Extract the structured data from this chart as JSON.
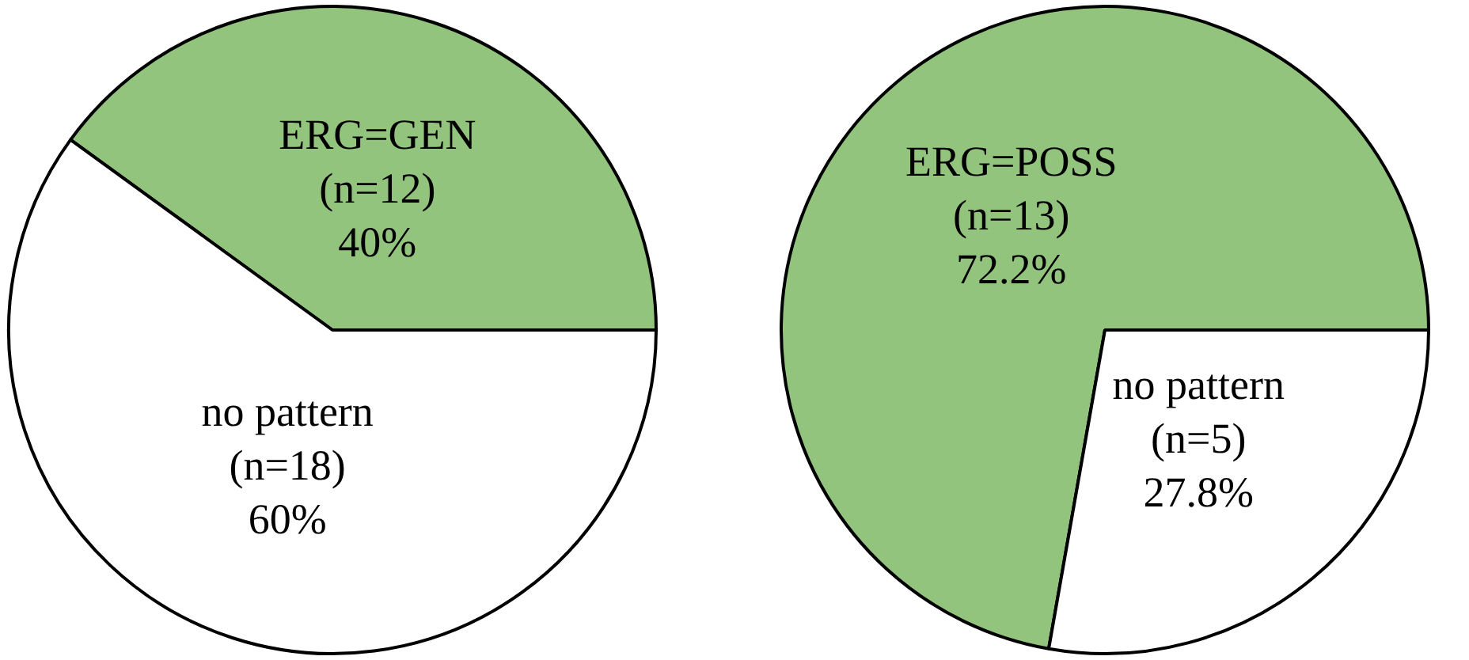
{
  "chart_data": [
    {
      "type": "pie",
      "categories": [
        "ERG=GEN",
        "no pattern"
      ],
      "values": [
        12,
        18
      ],
      "value_labels": [
        "(n=12)\n40%",
        "(n=18)\n60%"
      ],
      "colors": [
        "#93c47d",
        "#ffffff"
      ],
      "legend": false
    },
    {
      "type": "pie",
      "categories": [
        "ERG=POSS",
        "no pattern"
      ],
      "values": [
        13,
        5
      ],
      "value_labels": [
        "(n=13)\n72.2%",
        "(n=5)\n27.8%"
      ],
      "colors": [
        "#93c47d",
        "#ffffff"
      ],
      "legend": false
    }
  ]
}
